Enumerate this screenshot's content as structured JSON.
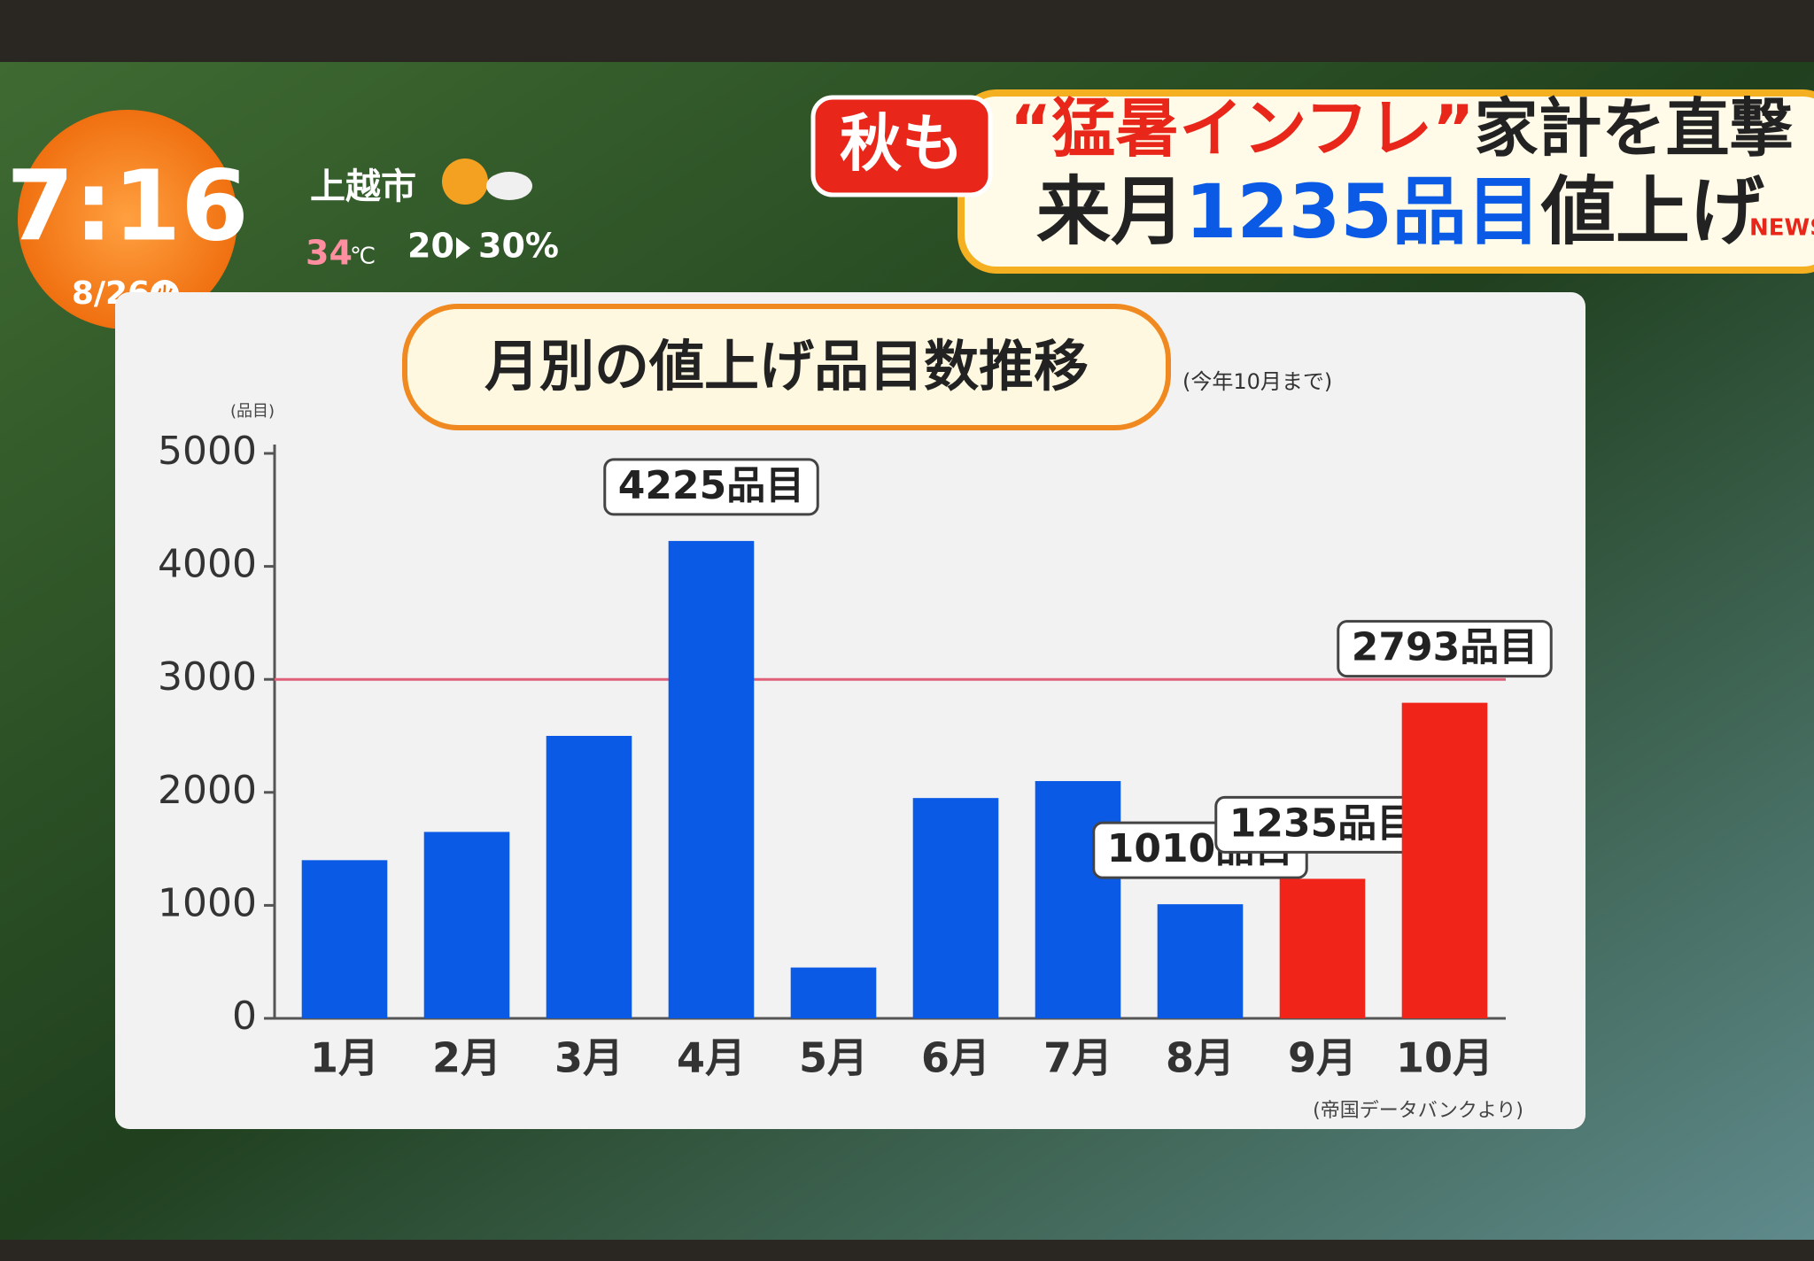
{
  "chart_data": {
    "type": "bar",
    "title": "月別の値上げ品目数推移",
    "subtitle": "(今年10月まで)",
    "y_unit": "(品目)",
    "source": "(帝国データバンクより)",
    "categories": [
      "1月",
      "2月",
      "3月",
      "4月",
      "5月",
      "6月",
      "7月",
      "8月",
      "9月",
      "10月"
    ],
    "values": [
      1400,
      1650,
      2500,
      4225,
      450,
      1950,
      2100,
      1010,
      1235,
      2793
    ],
    "value_labels": [
      null,
      null,
      null,
      "4225品目",
      null,
      null,
      null,
      "1010品目",
      "1235品目",
      "2793品目"
    ],
    "colors": [
      "#0a5ae6",
      "#0a5ae6",
      "#0a5ae6",
      "#0a5ae6",
      "#0a5ae6",
      "#0a5ae6",
      "#0a5ae6",
      "#0a5ae6",
      "#f02418",
      "#f02418"
    ],
    "ylim": [
      0,
      5000
    ],
    "yticks": [
      0,
      1000,
      2000,
      3000,
      4000,
      5000
    ],
    "reference_line": {
      "value": 3000,
      "color": "#e0607a"
    }
  },
  "overlay": {
    "time": "7:16",
    "date": "8/26",
    "weekday": "火",
    "city": "上越市",
    "temperature": "34",
    "temperature_unit": "℃",
    "rain_chance_from": "20",
    "rain_chance_to": "30%",
    "tag": "秋も",
    "headline_1": [
      "“猛暑インフレ”",
      "家計を直撃"
    ],
    "headline_2": [
      "来月",
      "1235品目",
      "値上げ"
    ],
    "badge": "NEWS"
  }
}
